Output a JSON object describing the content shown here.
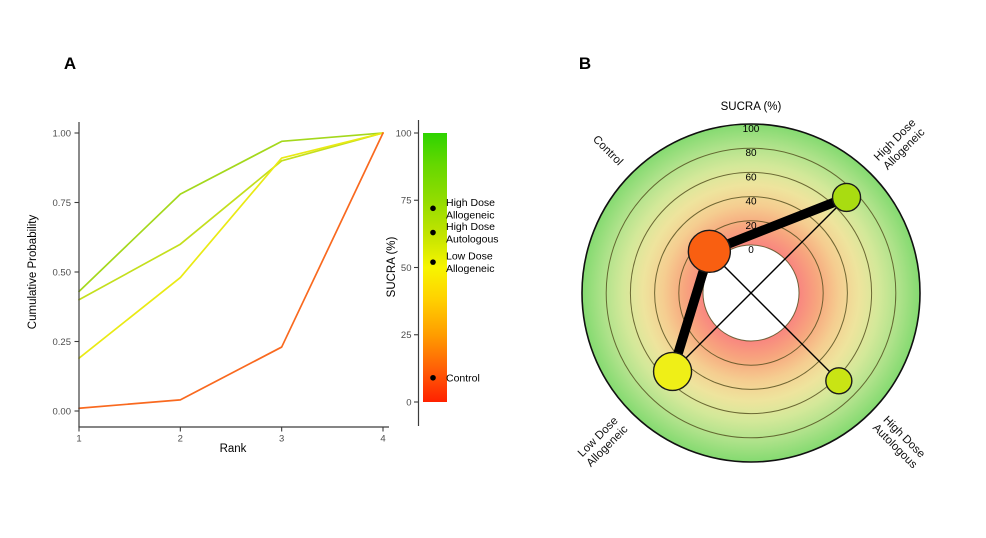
{
  "figure": {
    "panel_a_label": "A",
    "panel_b_label": "B"
  },
  "chart_data": [
    {
      "panel": "A",
      "type": "line",
      "xlabel": "Rank",
      "ylabel": "Cumulative Probability",
      "x": [
        1,
        2,
        3,
        4
      ],
      "xlim": [
        1,
        4
      ],
      "ylim": [
        0.0,
        1.0
      ],
      "y_ticks": [
        {
          "label": "1.00",
          "value": 1.0
        },
        {
          "label": "0.75",
          "value": 0.75
        },
        {
          "label": "0.50",
          "value": 0.5
        },
        {
          "label": "0.25",
          "value": 0.25
        },
        {
          "label": "0.00",
          "value": 0.0
        }
      ],
      "series": [
        {
          "name": "High Dose Allogeneic",
          "values": [
            0.43,
            0.78,
            0.97,
            1.0
          ],
          "color": "#A4D81C"
        },
        {
          "name": "High Dose Autologous",
          "values": [
            0.4,
            0.6,
            0.9,
            1.0
          ],
          "color": "#C4DF1D"
        },
        {
          "name": "Low Dose Allogeneic",
          "values": [
            0.19,
            0.48,
            0.91,
            1.0
          ],
          "color": "#EAEA14"
        },
        {
          "name": "Control",
          "values": [
            0.01,
            0.04,
            0.23,
            1.0
          ],
          "color": "#F9691F"
        }
      ],
      "colorbar_legend": {
        "title": "SUCRA (%)",
        "range": [
          0,
          100
        ],
        "ticks": [
          100,
          75,
          50,
          25,
          0
        ],
        "gradient_stops": [
          {
            "sucra": 100,
            "color": "#2ED300"
          },
          {
            "sucra": 88,
            "color": "#66D800"
          },
          {
            "sucra": 75,
            "color": "#92DC00"
          },
          {
            "sucra": 62,
            "color": "#C3E400"
          },
          {
            "sucra": 50,
            "color": "#F7F500"
          },
          {
            "sucra": 38,
            "color": "#FFD000"
          },
          {
            "sucra": 25,
            "color": "#FF9D00"
          },
          {
            "sucra": 12,
            "color": "#FF5E07"
          },
          {
            "sucra": 0,
            "color": "#FF2100"
          }
        ],
        "markers": [
          {
            "name": "High Dose Allogeneic",
            "label_lines": [
              "High Dose",
              "Allogeneic"
            ],
            "sucra": 72
          },
          {
            "name": "High Dose Autologous",
            "label_lines": [
              "High Dose",
              "Autologous"
            ],
            "sucra": 63
          },
          {
            "name": "Low Dose Allogeneic",
            "label_lines": [
              "Low Dose",
              "Allogeneic"
            ],
            "sucra": 52
          },
          {
            "name": "Control",
            "label_lines": [
              "Control"
            ],
            "sucra": 9
          }
        ]
      }
    },
    {
      "panel": "B",
      "type": "radial-network",
      "title": "SUCRA (%)",
      "radial_axis": {
        "range": [
          0,
          100
        ],
        "ticks": [
          100,
          80,
          60,
          40,
          20,
          0
        ]
      },
      "nodes": [
        {
          "name": "High Dose Allogeneic",
          "label_lines": [
            "High Dose",
            "Allogeneic"
          ],
          "sucra": 72,
          "angle_deg": 45,
          "size": 14,
          "color": "#A9DC11"
        },
        {
          "name": "Control",
          "label_lines": [
            "Control"
          ],
          "sucra": 9,
          "angle_deg": 135,
          "size": 21,
          "color": "#F95F11"
        },
        {
          "name": "Low Dose Allogeneic",
          "label_lines": [
            "Low Dose",
            "Allogeneic"
          ],
          "sucra": 52,
          "angle_deg": 225,
          "size": 19,
          "color": "#EFEF17"
        },
        {
          "name": "High Dose Autologous",
          "label_lines": [
            "High Dose",
            "Autologous"
          ],
          "sucra": 63,
          "angle_deg": 315,
          "size": 13,
          "color": "#C9E414"
        }
      ],
      "edges": [
        {
          "from": "Control",
          "to": "High Dose Allogeneic",
          "width": 9.5
        },
        {
          "from": "Control",
          "to": "Low Dose Allogeneic",
          "width": 9.5
        },
        {
          "from": "Control",
          "to": "High Dose Autologous",
          "width": 1.4
        },
        {
          "from": "High Dose Allogeneic",
          "to": "Low Dose Allogeneic",
          "width": 1.4
        }
      ],
      "background_gradient_stops": [
        {
          "frac": 0.0,
          "color": "#F9857F"
        },
        {
          "frac": 0.28,
          "color": "#F9857F"
        },
        {
          "frac": 0.4,
          "color": "#F7A77E"
        },
        {
          "frac": 0.52,
          "color": "#F5CD90"
        },
        {
          "frac": 0.64,
          "color": "#EEE49D"
        },
        {
          "frac": 0.76,
          "color": "#D3E899"
        },
        {
          "frac": 0.88,
          "color": "#AEE28A"
        },
        {
          "frac": 1.0,
          "color": "#84DA70"
        }
      ]
    }
  ]
}
